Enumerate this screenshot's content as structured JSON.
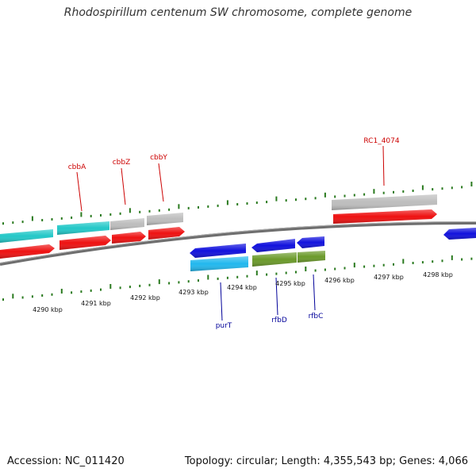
{
  "title": "Rhodospirillum centenum SW chromosome, complete genome",
  "footer": {
    "accession": "Accession: NC_011420",
    "stats": "Topology: circular; Length: 4,355,543 bp; Genes: 4,066"
  },
  "colors": {
    "cyan": "#23c8c8",
    "red": "#ee1111",
    "grey": "#bdbdbd",
    "blue": "#1111dd",
    "sky": "#22b8ee",
    "olive": "#6b9a2a",
    "tick": "#2a7a1f",
    "backbone": "#777777",
    "label_red": "#cc0000",
    "label_blue": "#000099"
  },
  "ticks": [
    {
      "label": "4290 kbp"
    },
    {
      "label": "4291 kbp"
    },
    {
      "label": "4292 kbp"
    },
    {
      "label": "4293 kbp"
    },
    {
      "label": "4294 kbp"
    },
    {
      "label": "4295 kbp"
    },
    {
      "label": "4296 kbp"
    },
    {
      "label": "4297 kbp"
    },
    {
      "label": "4298 kbp"
    }
  ],
  "gene_labels": [
    {
      "name": "cbbA",
      "color": "label_red"
    },
    {
      "name": "cbbZ",
      "color": "label_red"
    },
    {
      "name": "cbbY",
      "color": "label_red"
    },
    {
      "name": "RC1_4074",
      "color": "label_red"
    },
    {
      "name": "purT",
      "color": "label_blue"
    },
    {
      "name": "rfbD",
      "color": "label_blue"
    },
    {
      "name": "rfbC",
      "color": "label_blue"
    }
  ]
}
